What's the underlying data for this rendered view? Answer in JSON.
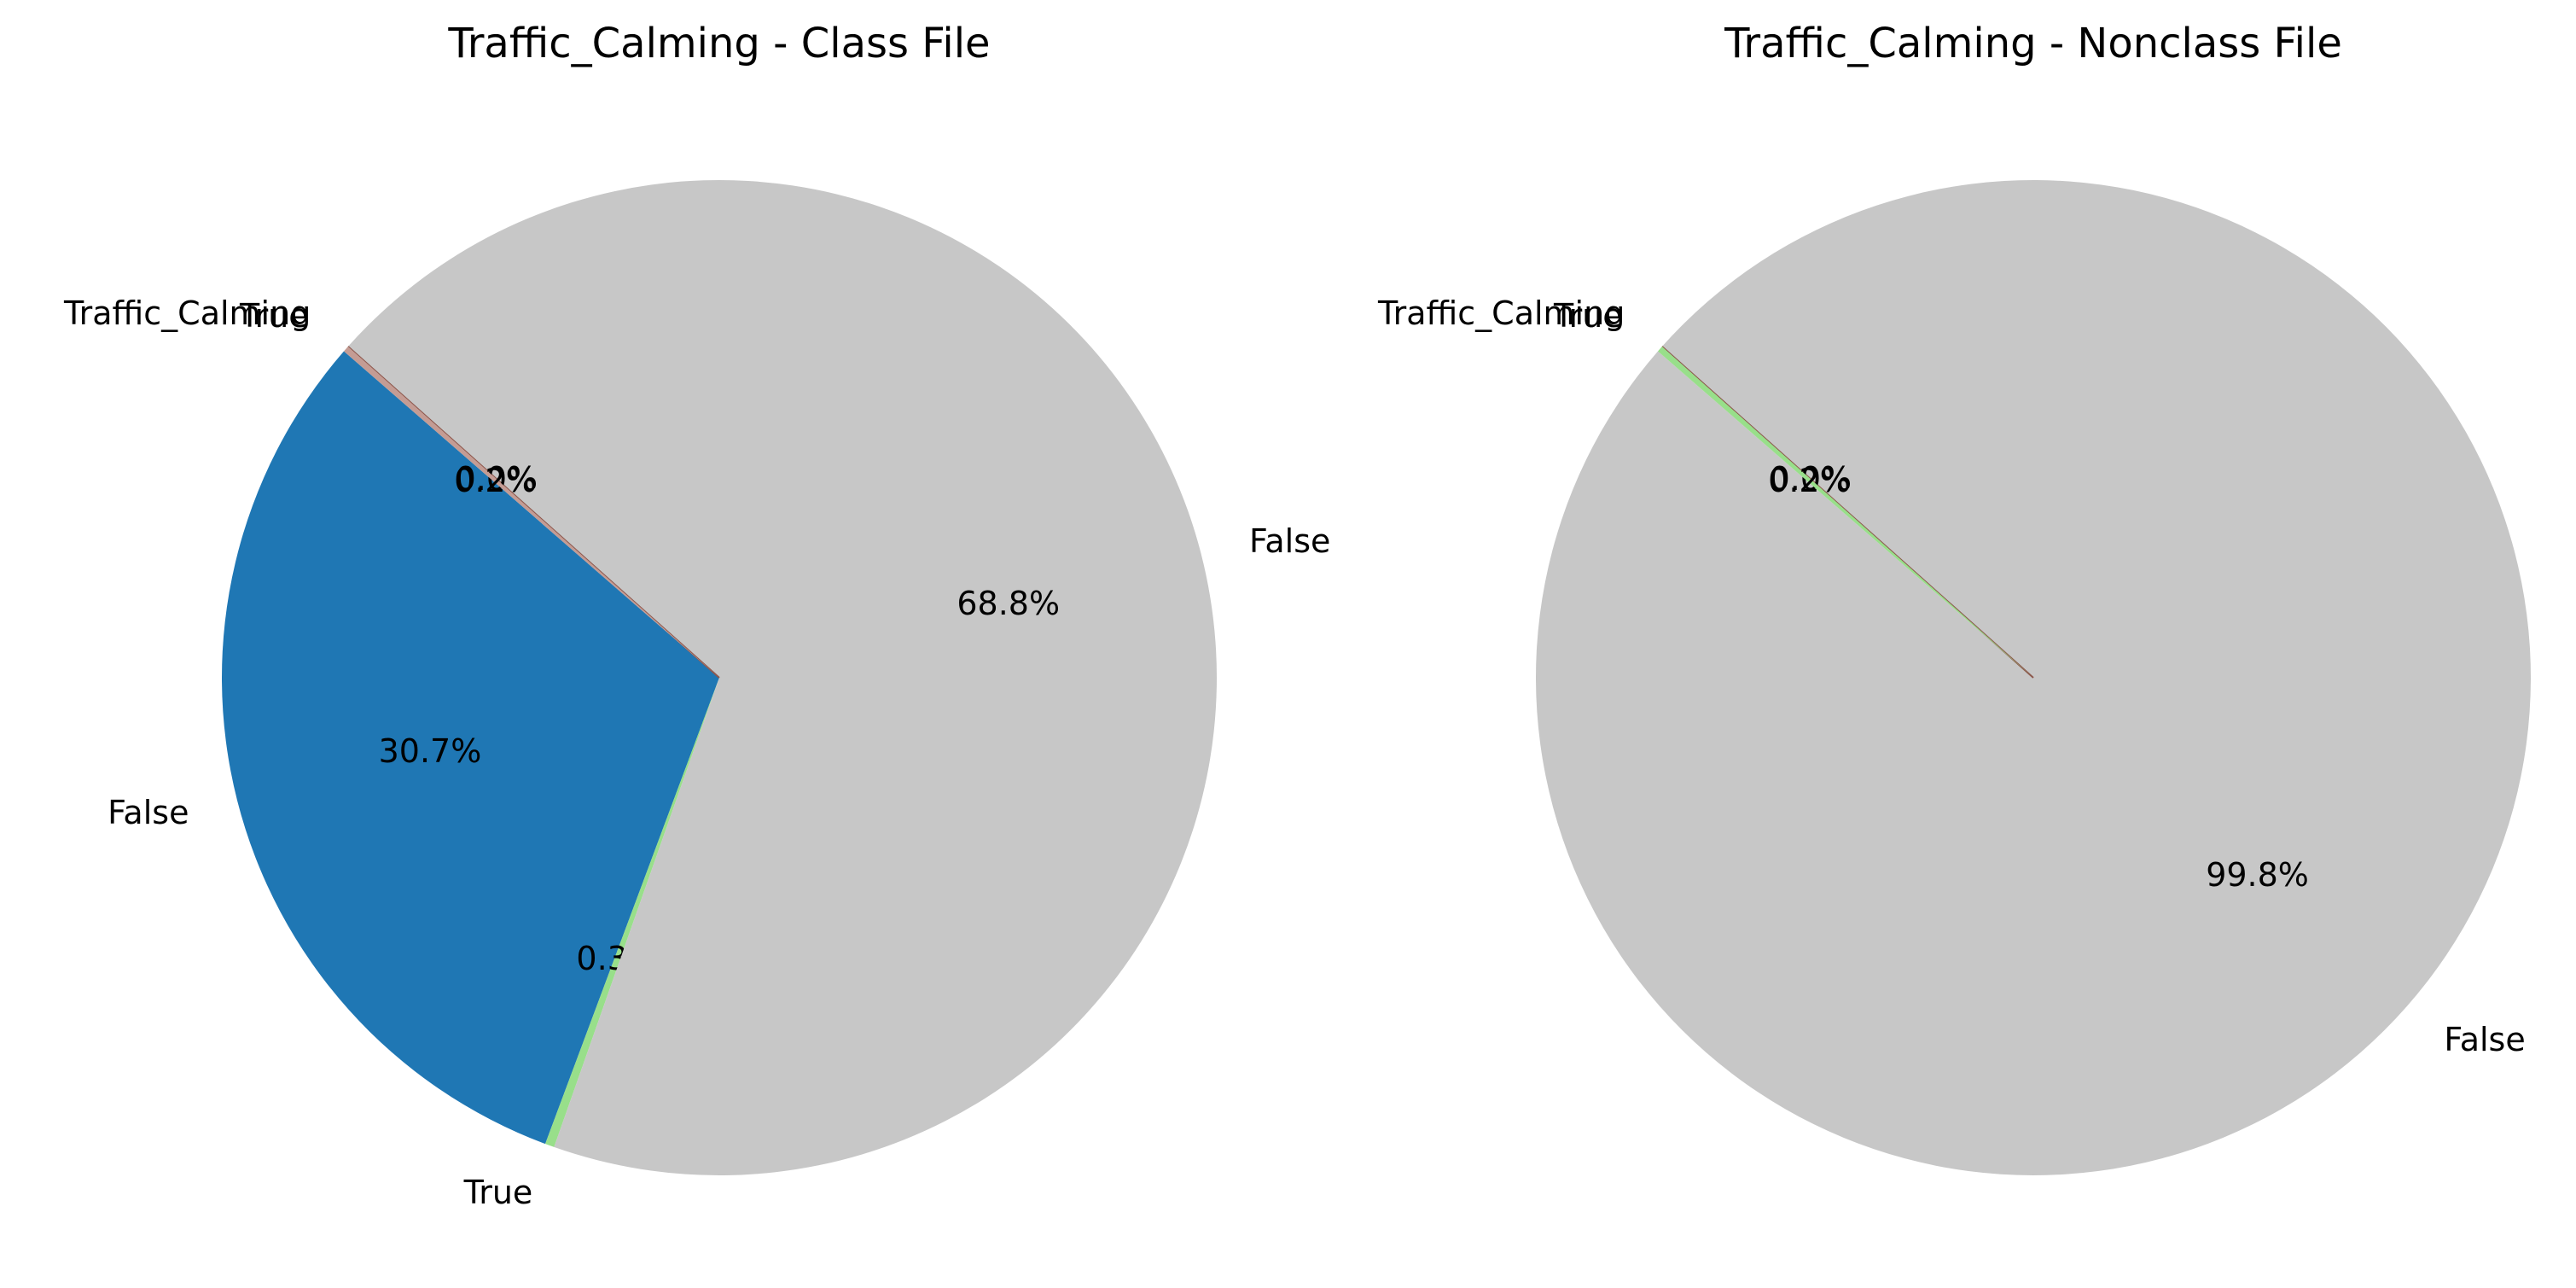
{
  "charts": [
    {
      "title": "Traffic_Calming - Class File",
      "type": "pie",
      "slices": [
        {
          "label": "False",
          "value": 30.7,
          "pct_label": "30.7%",
          "color": "#1f77b4"
        },
        {
          "label": "True",
          "value": 0.3,
          "pct_label": "0.3%",
          "color": "#98df8a"
        },
        {
          "label": "False",
          "value": 68.8,
          "pct_label": "68.8%",
          "color": "#c7c7c7"
        },
        {
          "label": "Traffic_Calming",
          "value": 0.0,
          "pct_label": "0.0%",
          "color": "#8c564b"
        },
        {
          "label": "True",
          "value": 0.2,
          "pct_label": "0.2%",
          "color": "#c49c94"
        }
      ]
    },
    {
      "title": "Traffic_Calming - Nonclass File",
      "type": "pie",
      "slices": [
        {
          "label": "False",
          "value": 99.8,
          "pct_label": "99.8%",
          "color": "#c7c7c7"
        },
        {
          "label": "Traffic_Calming",
          "value": 0.0,
          "pct_label": "0.0%",
          "color": "#8c564b"
        },
        {
          "label": "True",
          "value": 0.2,
          "pct_label": "0.2%",
          "color": "#98df8a"
        }
      ]
    }
  ],
  "chart_data": [
    {
      "type": "pie",
      "title": "Traffic_Calming - Class File",
      "labels": [
        "False",
        "True",
        "False",
        "Traffic_Calming",
        "True"
      ],
      "values": [
        30.7,
        0.3,
        68.8,
        0.0,
        0.2
      ]
    },
    {
      "type": "pie",
      "title": "Traffic_Calming - Nonclass File",
      "labels": [
        "False",
        "Traffic_Calming",
        "True"
      ],
      "values": [
        99.8,
        0.0,
        0.2
      ]
    }
  ]
}
